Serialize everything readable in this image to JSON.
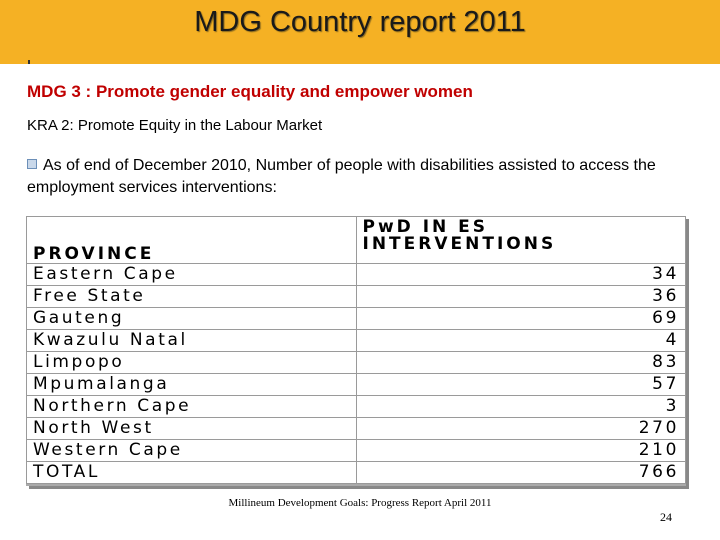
{
  "header": {
    "title": "MDG Country report 2011"
  },
  "subtitle": "MDG 3 : Promote gender equality and empower women",
  "kra": "KRA 2: Promote Equity in the Labour Market",
  "bullet": "As of end of December 2010, Number of people with disabilities  assisted to access the employment services interventions:",
  "table": {
    "columns": [
      "PROVINCE",
      "PwD  IN ES INTERVENTIONS"
    ],
    "rows": [
      [
        "Eastern Cape",
        34
      ],
      [
        "Free State",
        36
      ],
      [
        "Gauteng",
        69
      ],
      [
        "Kwazulu Natal",
        4
      ],
      [
        "Limpopo",
        83
      ],
      [
        "Mpumalanga",
        57
      ],
      [
        "Northern Cape",
        3
      ],
      [
        "North West",
        270
      ],
      [
        "Western Cape",
        210
      ],
      [
        "TOTAL",
        766
      ]
    ]
  },
  "footer": {
    "text": "Millineum Development Goals: Progress Report  April 2011",
    "page": 24
  }
}
